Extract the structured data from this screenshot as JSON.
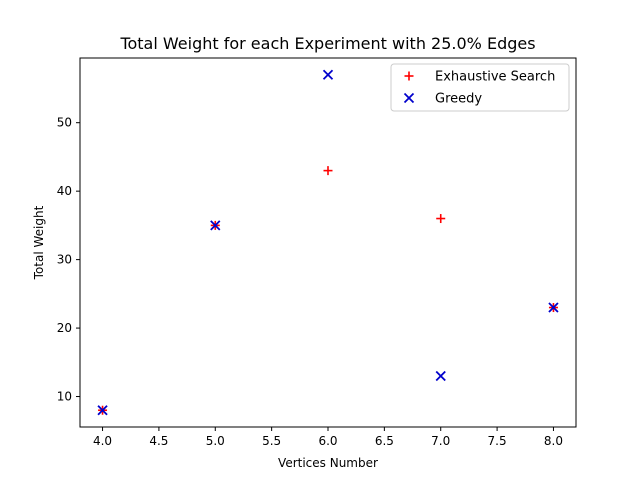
{
  "chart_data": {
    "type": "scatter",
    "title": "Total Weight for each Experiment with 25.0% Edges",
    "xlabel": "Vertices Number",
    "ylabel": "Total Weight",
    "xlim": [
      3.8,
      8.2
    ],
    "ylim": [
      5.55,
      59.45
    ],
    "xticks": [
      "4.0",
      "4.5",
      "5.0",
      "5.5",
      "6.0",
      "6.5",
      "7.0",
      "7.5",
      "8.0"
    ],
    "yticks": [
      "10",
      "20",
      "30",
      "40",
      "50"
    ],
    "grid": false,
    "legend_position": "top-right",
    "series": [
      {
        "name": "Exhaustive Search",
        "marker": "plus",
        "color": "#ff0000",
        "x": [
          4,
          5,
          6,
          7,
          8
        ],
        "y": [
          8,
          35,
          43,
          36,
          23
        ]
      },
      {
        "name": "Greedy",
        "marker": "x",
        "color": "#0000cc",
        "x": [
          4,
          5,
          6,
          7,
          8
        ],
        "y": [
          8,
          35,
          57,
          13,
          23
        ]
      }
    ]
  }
}
